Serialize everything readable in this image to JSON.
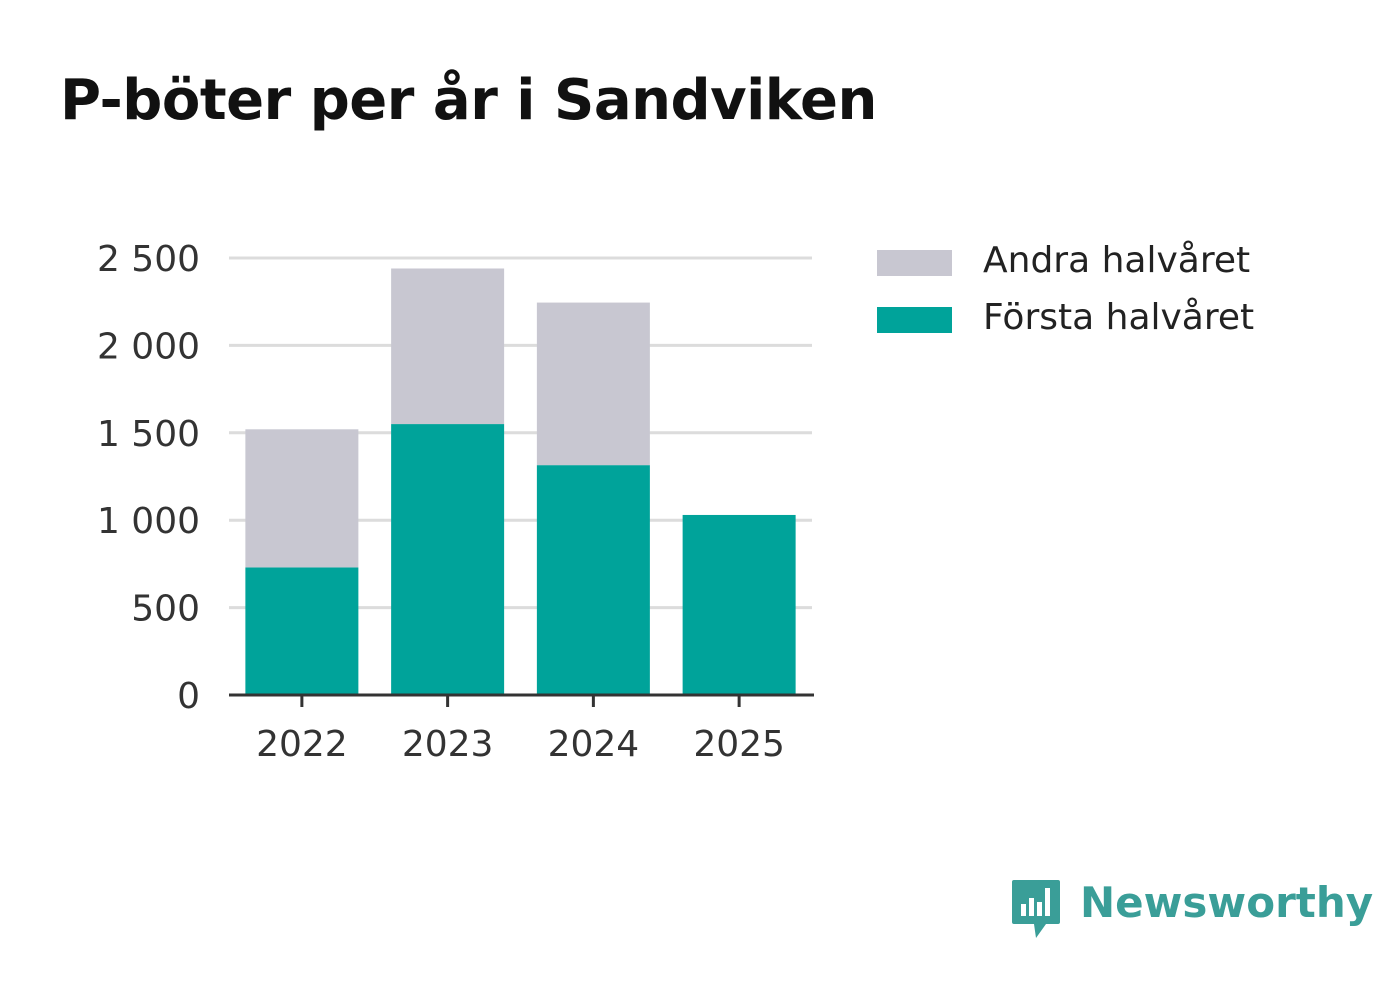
{
  "chart_data": {
    "type": "bar",
    "stacked": true,
    "title": "P-böter per år i Sandviken",
    "categories": [
      "2022",
      "2023",
      "2024",
      "2025"
    ],
    "series": [
      {
        "name": "Första halvåret",
        "color": "#00a39a",
        "values": [
          730,
          1550,
          1315,
          1030
        ]
      },
      {
        "name": "Andra halvåret",
        "color": "#c8c7d1",
        "values": [
          790,
          890,
          930,
          0
        ]
      }
    ],
    "ylim": [
      0,
      2500
    ],
    "yticks": [
      0,
      500,
      1000,
      1500,
      2000,
      2500
    ],
    "ytick_labels": [
      "0",
      "500",
      "1 000",
      "1 500",
      "2 000",
      "2 500"
    ],
    "xlabel": "",
    "ylabel": "",
    "grid": true,
    "legend": "top-right"
  },
  "legend": {
    "items": [
      {
        "label": "Andra halvåret",
        "color": "#c8c7d1"
      },
      {
        "label": "Första halvåret",
        "color": "#00a39a"
      }
    ]
  },
  "branding": {
    "name": "Newsworthy",
    "icon": "newsworthy-logo-icon",
    "color": "#3a9e98"
  }
}
